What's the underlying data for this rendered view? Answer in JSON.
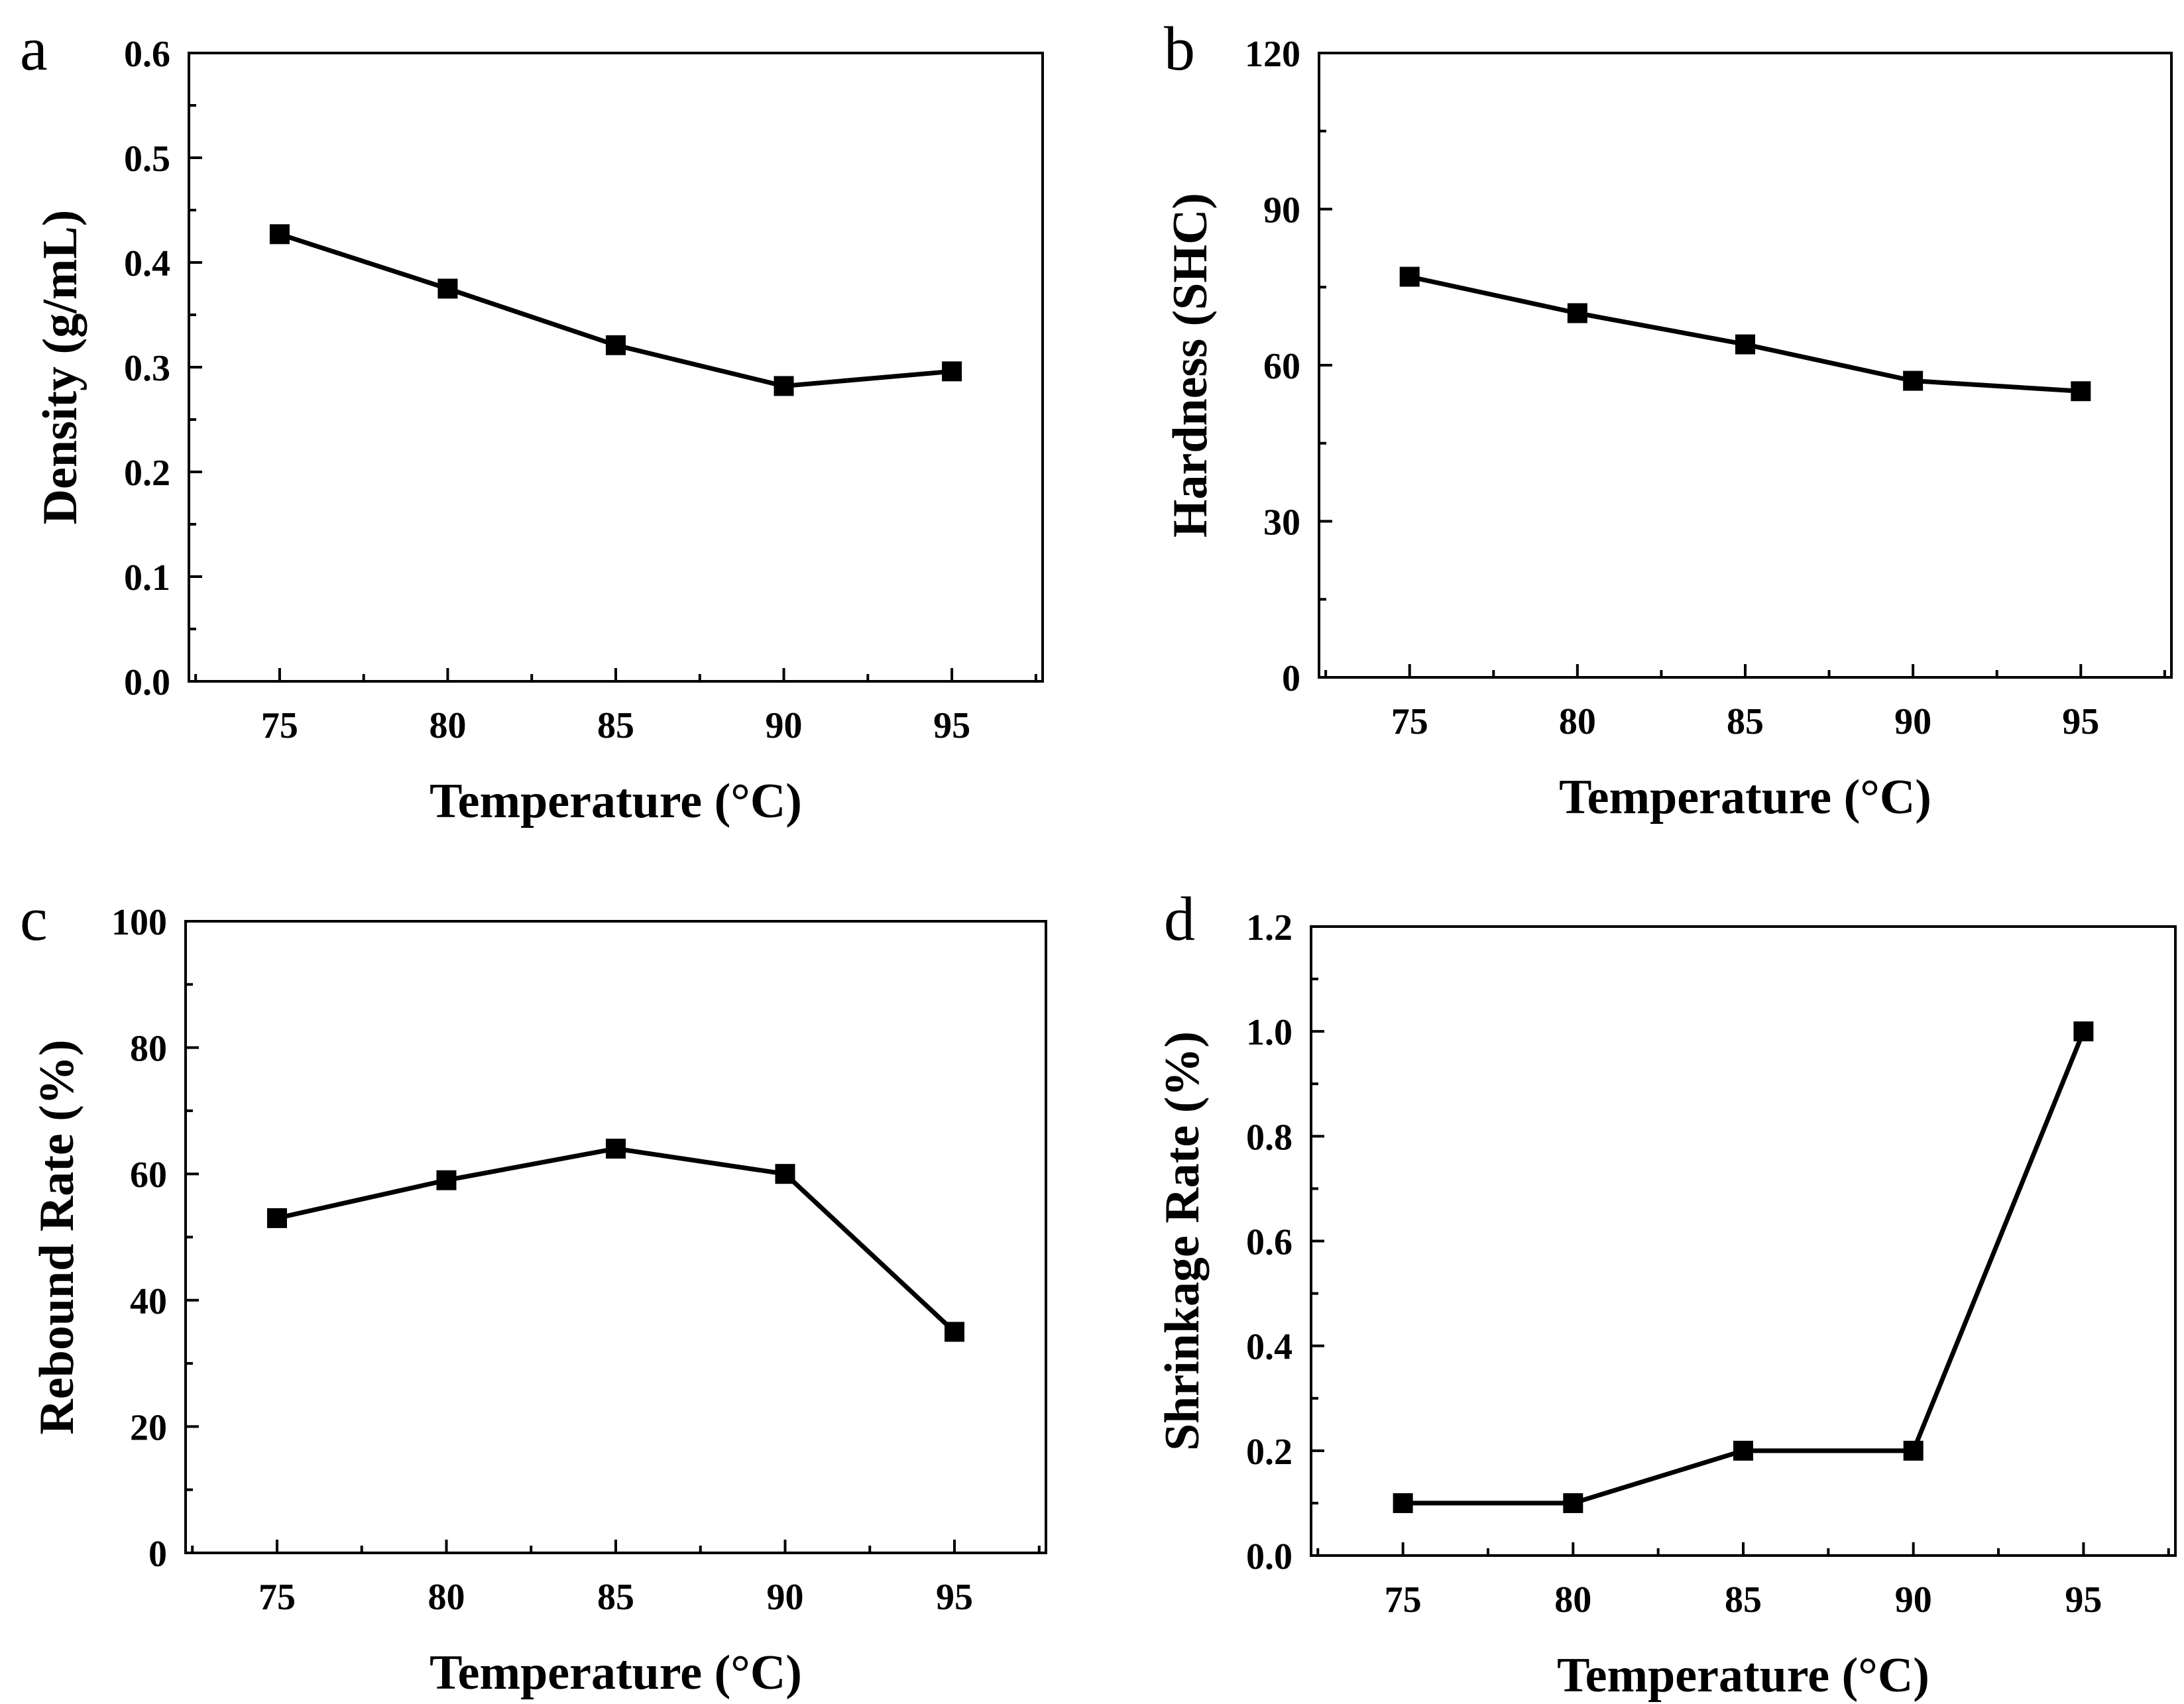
{
  "figure": {
    "background": "#ffffff",
    "ink": "#000000"
  },
  "chart_data": [
    {
      "type": "line",
      "panel_label": "a",
      "title": "",
      "xlabel": "Temperature (°C)",
      "ylabel": "Density (g/mL)",
      "x": [
        75,
        80,
        85,
        90,
        95
      ],
      "xticks": [
        75,
        80,
        85,
        90,
        95
      ],
      "xtick_labels": [
        "75",
        "80",
        "85",
        "90",
        "95"
      ],
      "xlim": [
        72.3,
        97.7
      ],
      "yticks": [
        0.0,
        0.1,
        0.2,
        0.3,
        0.4,
        0.5,
        0.6
      ],
      "ytick_labels": [
        "0.0",
        "0.1",
        "0.2",
        "0.3",
        "0.4",
        "0.5",
        "0.6"
      ],
      "ylim": [
        0,
        0.6
      ],
      "series": [
        {
          "name": "Density",
          "values": [
            0.427,
            0.375,
            0.321,
            0.282,
            0.296
          ],
          "marker": "square",
          "color": "#000000"
        }
      ],
      "grid": false,
      "legend": "none"
    },
    {
      "type": "line",
      "panel_label": "b",
      "title": "",
      "xlabel": "Temperature (°C)",
      "ylabel": "Hardness (SHC)",
      "x": [
        75,
        80,
        85,
        90,
        95
      ],
      "xticks": [
        75,
        80,
        85,
        90,
        95
      ],
      "xtick_labels": [
        "75",
        "80",
        "85",
        "90",
        "95"
      ],
      "xlim": [
        72.3,
        97.7
      ],
      "yticks": [
        0,
        30,
        60,
        90,
        120
      ],
      "ytick_labels": [
        "0",
        "30",
        "60",
        "90",
        "120"
      ],
      "ylim": [
        0,
        120
      ],
      "series": [
        {
          "name": "Hardness",
          "values": [
            77,
            70,
            64,
            57,
            55
          ],
          "marker": "square",
          "color": "#000000"
        }
      ],
      "grid": false,
      "legend": "none"
    },
    {
      "type": "line",
      "panel_label": "c",
      "title": "",
      "xlabel": "Temperature (°C)",
      "ylabel": "Rebound Rate (%)",
      "x": [
        75,
        80,
        85,
        90,
        95
      ],
      "xticks": [
        75,
        80,
        85,
        90,
        95
      ],
      "xtick_labels": [
        "75",
        "80",
        "85",
        "90",
        "95"
      ],
      "xlim": [
        72.3,
        97.7
      ],
      "yticks": [
        0,
        20,
        40,
        60,
        80,
        100
      ],
      "ytick_labels": [
        "0",
        "20",
        "40",
        "60",
        "80",
        "100"
      ],
      "ylim": [
        0,
        100
      ],
      "series": [
        {
          "name": "Rebound Rate",
          "values": [
            53,
            59,
            64,
            60,
            35
          ],
          "marker": "square",
          "color": "#000000"
        }
      ],
      "grid": false,
      "legend": "none"
    },
    {
      "type": "line",
      "panel_label": "d",
      "title": "",
      "xlabel": "Temperature (°C)",
      "ylabel": "Shrinkage Rate (%)",
      "x": [
        75,
        80,
        85,
        90,
        95
      ],
      "xticks": [
        75,
        80,
        85,
        90,
        95
      ],
      "xtick_labels": [
        "75",
        "80",
        "85",
        "90",
        "95"
      ],
      "xlim": [
        72.3,
        97.7
      ],
      "yticks": [
        0.0,
        0.2,
        0.4,
        0.6,
        0.8,
        1.0,
        1.2
      ],
      "ytick_labels": [
        "0.0",
        "0.2",
        "0.4",
        "0.6",
        "0.8",
        "1.0",
        "1.2"
      ],
      "ylim": [
        0,
        1.2
      ],
      "series": [
        {
          "name": "Shrinkage Rate",
          "values": [
            0.1,
            0.1,
            0.2,
            0.2,
            1.0
          ],
          "marker": "square",
          "color": "#000000"
        }
      ],
      "grid": false,
      "legend": "none"
    }
  ]
}
